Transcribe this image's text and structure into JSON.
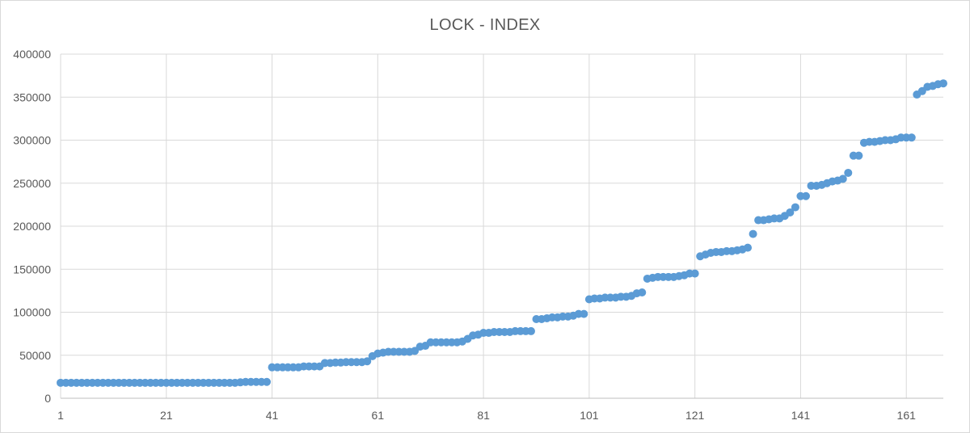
{
  "chart_data": {
    "type": "scatter",
    "title": "LOCK - INDEX",
    "xlabel": "",
    "ylabel": "",
    "xlim": [
      1,
      168
    ],
    "ylim": [
      0,
      400000
    ],
    "x_ticks": [
      1,
      21,
      41,
      61,
      81,
      101,
      121,
      141,
      161
    ],
    "y_ticks": [
      0,
      50000,
      100000,
      150000,
      200000,
      250000,
      300000,
      350000,
      400000
    ],
    "grid": true,
    "legend": "none",
    "marker_color": "#5b9bd5",
    "gridline_color": "#d9d9d9",
    "series": [
      {
        "x": [
          1,
          2,
          3,
          4,
          5,
          6,
          7,
          8,
          9,
          10,
          11,
          12,
          13,
          14,
          15,
          16,
          17,
          18,
          19,
          20,
          21,
          22,
          23,
          24,
          25,
          26,
          27,
          28,
          29,
          30,
          31,
          32,
          33,
          34,
          35,
          36,
          37,
          38,
          39,
          40,
          41,
          42,
          43,
          44,
          45,
          46,
          47,
          48,
          49,
          50,
          51,
          52,
          53,
          54,
          55,
          56,
          57,
          58,
          59,
          60,
          61,
          62,
          63,
          64,
          65,
          66,
          67,
          68,
          69,
          70,
          71,
          72,
          73,
          74,
          75,
          76,
          77,
          78,
          79,
          80,
          81,
          82,
          83,
          84,
          85,
          86,
          87,
          88,
          89,
          90,
          91,
          92,
          93,
          94,
          95,
          96,
          97,
          98,
          99,
          100,
          101,
          102,
          103,
          104,
          105,
          106,
          107,
          108,
          109,
          110,
          111,
          112,
          113,
          114,
          115,
          116,
          117,
          118,
          119,
          120,
          121,
          122,
          123,
          124,
          125,
          126,
          127,
          128,
          129,
          130,
          131,
          132,
          133,
          134,
          135,
          136,
          137,
          138,
          139,
          140,
          141,
          142,
          143,
          144,
          145,
          146,
          147,
          148,
          149,
          150,
          151,
          152,
          153,
          154,
          155,
          156,
          157,
          158,
          159,
          160,
          161,
          162,
          163,
          164,
          165,
          166,
          167,
          168
        ],
        "y": [
          18000,
          18000,
          18000,
          18000,
          18000,
          18000,
          18000,
          18000,
          18000,
          18000,
          18000,
          18000,
          18000,
          18000,
          18000,
          18000,
          18000,
          18000,
          18000,
          18000,
          18000,
          18000,
          18000,
          18000,
          18000,
          18000,
          18000,
          18000,
          18000,
          18000,
          18000,
          18000,
          18000,
          18000,
          18500,
          19000,
          19000,
          19000,
          19000,
          19000,
          36000,
          36000,
          36000,
          36000,
          36000,
          36000,
          37000,
          37000,
          37000,
          37000,
          41000,
          41000,
          41500,
          41500,
          42000,
          42000,
          42000,
          42000,
          43000,
          49000,
          52000,
          53000,
          54000,
          54000,
          54000,
          54000,
          54000,
          55000,
          60000,
          61000,
          65000,
          65000,
          65000,
          65000,
          65000,
          65000,
          66000,
          69000,
          73000,
          74000,
          76000,
          76000,
          77000,
          77000,
          77000,
          77000,
          78000,
          78000,
          78000,
          78000,
          92000,
          92000,
          93000,
          94000,
          94000,
          95000,
          95000,
          96000,
          98000,
          98000,
          115000,
          116000,
          116000,
          117000,
          117000,
          117000,
          118000,
          118000,
          119000,
          122000,
          123000,
          139000,
          140000,
          141000,
          141000,
          141000,
          141000,
          142000,
          143000,
          145000,
          145000,
          165000,
          167000,
          169000,
          170000,
          170000,
          171000,
          171000,
          172000,
          173000,
          175000,
          191000,
          207000,
          207000,
          208000,
          209000,
          209000,
          212000,
          216000,
          222000,
          235000,
          235000,
          247000,
          247000,
          248000,
          250000,
          252000,
          253000,
          255000,
          262000,
          282000,
          282000,
          297000,
          298000,
          298000,
          299000,
          300000,
          300000,
          301000,
          303000,
          303000,
          303000,
          353000,
          357000,
          362000,
          363000,
          365000,
          366000
        ]
      }
    ]
  }
}
